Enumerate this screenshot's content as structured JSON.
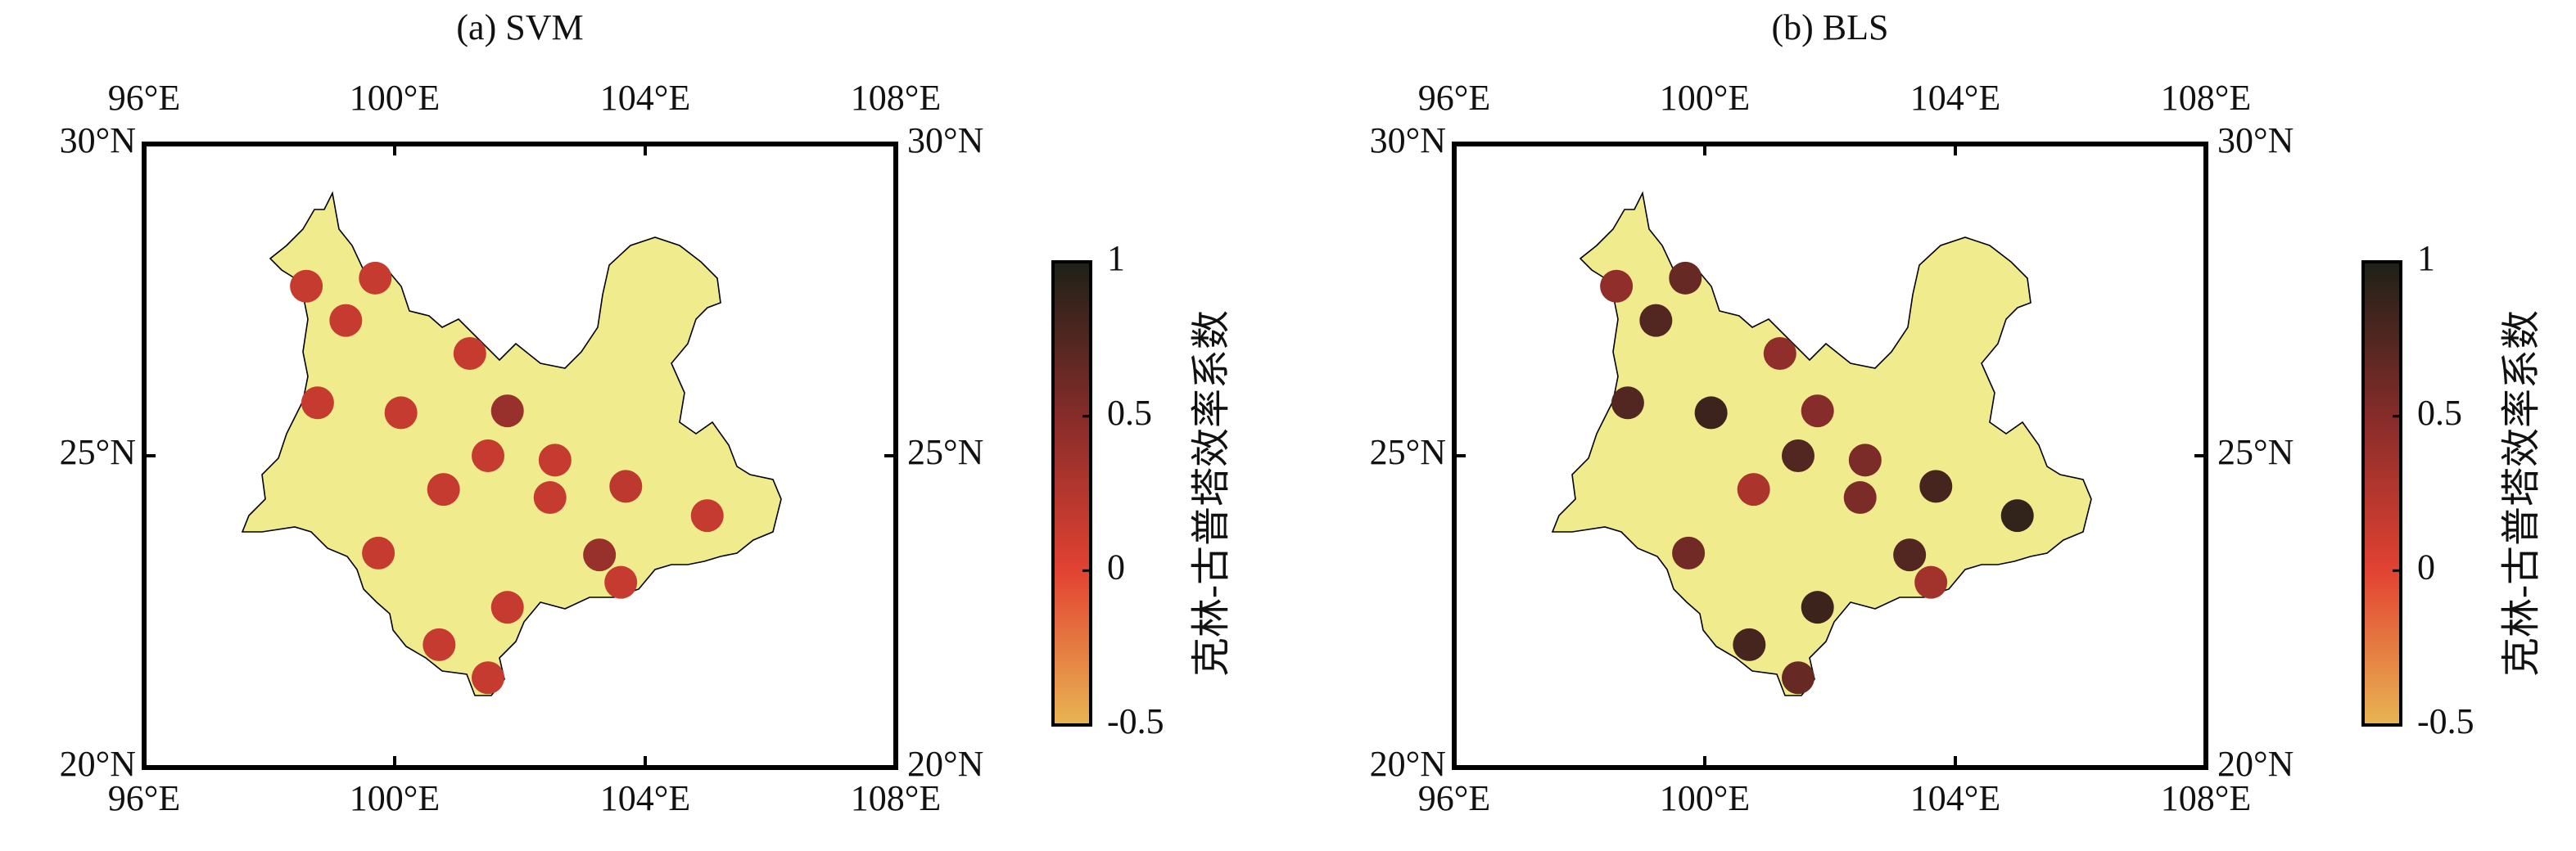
{
  "chart_data": [
    {
      "type": "scatter",
      "title": "(a) SVM",
      "x": [
        98.59,
        99.69,
        99.22,
        101.2,
        98.77,
        100.1,
        101.8,
        101.49,
        102.56,
        100.78,
        102.48,
        103.69,
        104.99,
        99.74,
        103.27,
        103.61,
        101.8,
        100.71,
        101.49
      ],
      "y": [
        27.72,
        27.85,
        27.17,
        26.64,
        25.85,
        25.69,
        25.72,
        25.0,
        24.93,
        24.46,
        24.33,
        24.51,
        24.04,
        23.44,
        23.41,
        22.97,
        22.57,
        21.97,
        21.44
      ],
      "values": [
        0.15,
        0.15,
        0.15,
        0.15,
        0.15,
        0.15,
        0.4,
        0.15,
        0.15,
        0.15,
        0.15,
        0.2,
        0.15,
        0.15,
        0.4,
        0.15,
        0.15,
        0.15,
        0.15
      ],
      "xlim": [
        96,
        108
      ],
      "ylim": [
        20,
        30
      ],
      "xticks": [
        {
          "value": 96,
          "label": "96°E"
        },
        {
          "value": 100,
          "label": "100°E"
        },
        {
          "value": 104,
          "label": "104°E"
        },
        {
          "value": 108,
          "label": "108°E"
        }
      ],
      "yticks": [
        {
          "value": 20,
          "label": "20°N"
        },
        {
          "value": 25,
          "label": "25°N"
        },
        {
          "value": 30,
          "label": "30°N"
        }
      ],
      "colorbar": {
        "label": "克林-古普塔效率系数",
        "lim": [
          -0.5,
          1
        ],
        "ticks": [
          -0.5,
          0,
          0.5,
          1
        ],
        "colormap": [
          "#e8b552",
          "#e24232",
          "#862c2a",
          "#1d2117"
        ]
      }
    },
    {
      "type": "scatter",
      "title": "(b) BLS",
      "x": [
        98.59,
        99.69,
        99.22,
        101.2,
        98.77,
        100.1,
        101.8,
        101.49,
        102.56,
        100.78,
        102.48,
        103.69,
        104.99,
        99.74,
        103.27,
        103.61,
        101.8,
        100.71,
        101.49
      ],
      "y": [
        27.72,
        27.85,
        27.17,
        26.64,
        25.85,
        25.69,
        25.72,
        25.0,
        24.93,
        24.46,
        24.33,
        24.51,
        24.04,
        23.44,
        23.41,
        22.97,
        22.57,
        21.97,
        21.44
      ],
      "values": [
        0.45,
        0.65,
        0.75,
        0.45,
        0.75,
        0.85,
        0.5,
        0.75,
        0.55,
        0.3,
        0.55,
        0.8,
        0.9,
        0.6,
        0.75,
        0.35,
        0.85,
        0.8,
        0.65
      ],
      "xlim": [
        96,
        108
      ],
      "ylim": [
        20,
        30
      ],
      "xticks": [
        {
          "value": 96,
          "label": "96°E"
        },
        {
          "value": 100,
          "label": "100°E"
        },
        {
          "value": 104,
          "label": "104°E"
        },
        {
          "value": 108,
          "label": "108°E"
        }
      ],
      "yticks": [
        {
          "value": 20,
          "label": "20°N"
        },
        {
          "value": 25,
          "label": "25°N"
        },
        {
          "value": 30,
          "label": "30°N"
        }
      ],
      "colorbar": {
        "label": "克林-古普塔效率系数",
        "lim": [
          -0.5,
          1
        ],
        "ticks": [
          -0.5,
          0,
          0.5,
          1
        ],
        "colormap": [
          "#e8b552",
          "#e24232",
          "#862c2a",
          "#1d2117"
        ]
      }
    }
  ]
}
